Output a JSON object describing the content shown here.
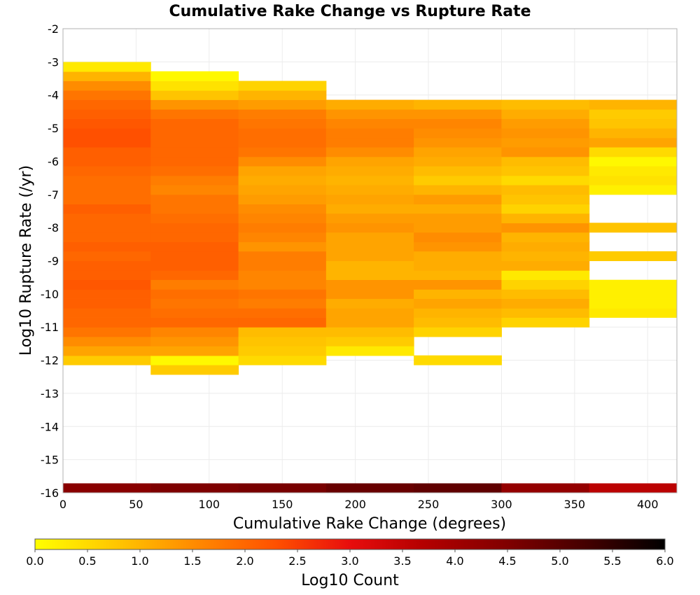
{
  "chart_data": {
    "type": "heatmap",
    "title": "Cumulative Rake Change vs Rupture Rate",
    "xlabel": "Cumulative Rake Change (degrees)",
    "ylabel": "Log10 Rupture Rate (/yr)",
    "xlim": [
      0,
      420
    ],
    "ylim": [
      -16,
      -2
    ],
    "x_ticks": [
      "0",
      "50",
      "100",
      "150",
      "200",
      "250",
      "300",
      "350",
      "400"
    ],
    "y_ticks": [
      "-2",
      "-3",
      "-4",
      "-5",
      "-6",
      "-7",
      "-8",
      "-9",
      "-10",
      "-11",
      "-12",
      "-13",
      "-14",
      "-15",
      "-16"
    ],
    "grid": true,
    "x_bin_width": 60,
    "y_bin_height": 0.2857,
    "colorbar": {
      "label": "Log10 Count",
      "range": [
        0,
        6
      ],
      "ticks": [
        "0.0",
        "0.5",
        "1.0",
        "1.5",
        "2.0",
        "2.5",
        "3.0",
        "3.5",
        "4.0",
        "4.5",
        "5.0",
        "5.5",
        "6.0"
      ],
      "stops": [
        [
          0,
          "#ffff00"
        ],
        [
          0.8,
          "#ffc400"
        ],
        [
          1.5,
          "#ff8c00"
        ],
        [
          2.3,
          "#ff5000"
        ],
        [
          3.0,
          "#e80d0d"
        ],
        [
          3.7,
          "#b40000"
        ],
        [
          4.5,
          "#800000"
        ],
        [
          5.3,
          "#400000"
        ],
        [
          6.0,
          "#000000"
        ]
      ]
    },
    "columns": [
      {
        "x_start": 0,
        "x_end": 60,
        "bottom_row_value": 4.36,
        "cells": [
          [
            -12.14,
            0.7
          ],
          [
            -11.86,
            1.2
          ],
          [
            -11.57,
            1.5
          ],
          [
            -11.29,
            1.8
          ],
          [
            -11.0,
            2.0
          ],
          [
            -10.71,
            2.0
          ],
          [
            -10.43,
            2.1
          ],
          [
            -10.14,
            2.1
          ],
          [
            -9.86,
            2.2
          ],
          [
            -9.57,
            2.1
          ],
          [
            -9.29,
            2.1
          ],
          [
            -9.0,
            2.0
          ],
          [
            -8.71,
            2.1
          ],
          [
            -8.43,
            2.0
          ],
          [
            -8.14,
            2.0
          ],
          [
            -7.86,
            2.0
          ],
          [
            -7.57,
            2.1
          ],
          [
            -7.29,
            1.9
          ],
          [
            -7.0,
            1.9
          ],
          [
            -6.71,
            1.9
          ],
          [
            -6.43,
            2.0
          ],
          [
            -6.14,
            2.1
          ],
          [
            -5.86,
            2.1
          ],
          [
            -5.57,
            2.3
          ],
          [
            -5.29,
            2.3
          ],
          [
            -5.0,
            2.2
          ],
          [
            -4.71,
            2.1
          ],
          [
            -4.43,
            2.0
          ],
          [
            -4.14,
            1.8
          ],
          [
            -3.86,
            1.5
          ],
          [
            -3.57,
            1.0
          ],
          [
            -3.29,
            0.3
          ]
        ]
      },
      {
        "x_start": 60,
        "x_end": 120,
        "bottom_row_value": 4.52,
        "cells": [
          [
            -12.43,
            0.7
          ],
          [
            -12.14,
            0.1
          ],
          [
            -11.86,
            1.2
          ],
          [
            -11.57,
            1.4
          ],
          [
            -11.29,
            1.6
          ],
          [
            -11.0,
            2.0
          ],
          [
            -10.71,
            1.9
          ],
          [
            -10.43,
            1.8
          ],
          [
            -10.14,
            1.9
          ],
          [
            -9.86,
            1.7
          ],
          [
            -9.57,
            2.0
          ],
          [
            -9.29,
            2.1
          ],
          [
            -9.0,
            2.1
          ],
          [
            -8.71,
            2.1
          ],
          [
            -8.43,
            2.0
          ],
          [
            -8.14,
            2.0
          ],
          [
            -7.86,
            1.9
          ],
          [
            -7.57,
            1.8
          ],
          [
            -7.29,
            1.8
          ],
          [
            -7.0,
            1.6
          ],
          [
            -6.71,
            1.7
          ],
          [
            -6.43,
            1.9
          ],
          [
            -6.14,
            2.0
          ],
          [
            -5.86,
            2.0
          ],
          [
            -5.57,
            2.0
          ],
          [
            -5.29,
            2.0
          ],
          [
            -5.0,
            2.0
          ],
          [
            -4.71,
            1.8
          ],
          [
            -4.43,
            1.4
          ],
          [
            -4.14,
            0.8
          ],
          [
            -3.86,
            0.4
          ],
          [
            -3.57,
            0.1
          ]
        ]
      },
      {
        "x_start": 120,
        "x_end": 180,
        "bottom_row_value": 4.6,
        "cells": [
          [
            -12.14,
            0.5
          ],
          [
            -11.86,
            0.7
          ],
          [
            -11.57,
            0.8
          ],
          [
            -11.29,
            0.9
          ],
          [
            -11.0,
            2.0
          ],
          [
            -10.71,
            1.9
          ],
          [
            -10.43,
            1.7
          ],
          [
            -10.14,
            1.8
          ],
          [
            -9.86,
            1.6
          ],
          [
            -9.57,
            1.6
          ],
          [
            -9.29,
            1.7
          ],
          [
            -9.0,
            1.7
          ],
          [
            -8.71,
            1.4
          ],
          [
            -8.43,
            1.6
          ],
          [
            -8.14,
            1.7
          ],
          [
            -7.86,
            1.6
          ],
          [
            -7.57,
            1.5
          ],
          [
            -7.29,
            1.3
          ],
          [
            -7.0,
            1.2
          ],
          [
            -6.71,
            1.1
          ],
          [
            -6.43,
            1.2
          ],
          [
            -6.14,
            1.5
          ],
          [
            -5.86,
            1.8
          ],
          [
            -5.57,
            1.9
          ],
          [
            -5.29,
            1.9
          ],
          [
            -5.0,
            1.8
          ],
          [
            -4.71,
            1.7
          ],
          [
            -4.43,
            1.3
          ],
          [
            -4.14,
            1.0
          ],
          [
            -3.86,
            0.6
          ]
        ]
      },
      {
        "x_start": 180,
        "x_end": 240,
        "bottom_row_value": 4.8,
        "cells": [
          [
            -11.86,
            0.3
          ],
          [
            -11.57,
            0.7
          ],
          [
            -11.29,
            0.9
          ],
          [
            -11.0,
            1.2
          ],
          [
            -10.71,
            1.2
          ],
          [
            -10.43,
            1.1
          ],
          [
            -10.14,
            1.4
          ],
          [
            -9.86,
            1.4
          ],
          [
            -9.57,
            1.0
          ],
          [
            -9.29,
            1.0
          ],
          [
            -9.0,
            1.2
          ],
          [
            -8.71,
            1.2
          ],
          [
            -8.43,
            1.2
          ],
          [
            -8.14,
            1.4
          ],
          [
            -7.86,
            1.3
          ],
          [
            -7.57,
            1.1
          ],
          [
            -7.29,
            1.2
          ],
          [
            -7.0,
            1.1
          ],
          [
            -6.71,
            1.0
          ],
          [
            -6.43,
            1.1
          ],
          [
            -6.14,
            1.2
          ],
          [
            -5.86,
            1.5
          ],
          [
            -5.57,
            1.7
          ],
          [
            -5.29,
            1.7
          ],
          [
            -5.0,
            1.6
          ],
          [
            -4.71,
            1.4
          ],
          [
            -4.43,
            1.1
          ]
        ]
      },
      {
        "x_start": 240,
        "x_end": 300,
        "bottom_row_value": 4.9,
        "cells": [
          [
            -12.14,
            0.5
          ],
          [
            -11.29,
            0.6
          ],
          [
            -11.0,
            0.9
          ],
          [
            -10.71,
            1.0
          ],
          [
            -10.43,
            1.2
          ],
          [
            -10.14,
            1.0
          ],
          [
            -9.86,
            1.4
          ],
          [
            -9.57,
            1.0
          ],
          [
            -9.29,
            1.1
          ],
          [
            -9.0,
            1.1
          ],
          [
            -8.71,
            1.4
          ],
          [
            -8.43,
            1.5
          ],
          [
            -8.14,
            1.3
          ],
          [
            -7.86,
            1.3
          ],
          [
            -7.57,
            1.1
          ],
          [
            -7.29,
            1.3
          ],
          [
            -7.0,
            1.0
          ],
          [
            -6.71,
            0.7
          ],
          [
            -6.43,
            0.9
          ],
          [
            -6.14,
            1.1
          ],
          [
            -5.86,
            1.2
          ],
          [
            -5.57,
            1.4
          ],
          [
            -5.29,
            1.5
          ],
          [
            -5.0,
            1.6
          ],
          [
            -4.71,
            1.4
          ],
          [
            -4.43,
            1.0
          ]
        ]
      },
      {
        "x_start": 300,
        "x_end": 360,
        "bottom_row_value": 4.2,
        "cells": [
          [
            -11.0,
            0.6
          ],
          [
            -10.71,
            0.9
          ],
          [
            -10.43,
            1.1
          ],
          [
            -10.14,
            0.9
          ],
          [
            -9.86,
            0.6
          ],
          [
            -9.57,
            0.3
          ],
          [
            -9.29,
            1.1
          ],
          [
            -9.0,
            1.0
          ],
          [
            -8.71,
            1.1
          ],
          [
            -8.43,
            1.0
          ],
          [
            -8.14,
            1.4
          ],
          [
            -7.86,
            1.0
          ],
          [
            -7.57,
            0.6
          ],
          [
            -7.29,
            0.8
          ],
          [
            -7.0,
            0.9
          ],
          [
            -6.71,
            0.5
          ],
          [
            -6.43,
            0.8
          ],
          [
            -6.14,
            0.9
          ],
          [
            -5.86,
            1.4
          ],
          [
            -5.57,
            1.3
          ],
          [
            -5.29,
            1.4
          ],
          [
            -5.0,
            1.3
          ],
          [
            -4.71,
            1.1
          ],
          [
            -4.43,
            0.9
          ]
        ]
      },
      {
        "x_start": 360,
        "x_end": 420,
        "bottom_row_value": 3.6,
        "cells": [
          [
            -10.71,
            0.3
          ],
          [
            -10.43,
            0.2
          ],
          [
            -10.14,
            0.2
          ],
          [
            -9.86,
            0.2
          ],
          [
            -9.0,
            0.7
          ],
          [
            -8.14,
            0.8
          ],
          [
            -7.0,
            0.2
          ],
          [
            -6.71,
            0.4
          ],
          [
            -6.43,
            0.3
          ],
          [
            -6.14,
            0.1
          ],
          [
            -5.86,
            0.5
          ],
          [
            -5.57,
            1.2
          ],
          [
            -5.29,
            1.0
          ],
          [
            -5.0,
            0.8
          ],
          [
            -4.71,
            0.7
          ],
          [
            -4.43,
            1.0
          ]
        ]
      }
    ]
  }
}
